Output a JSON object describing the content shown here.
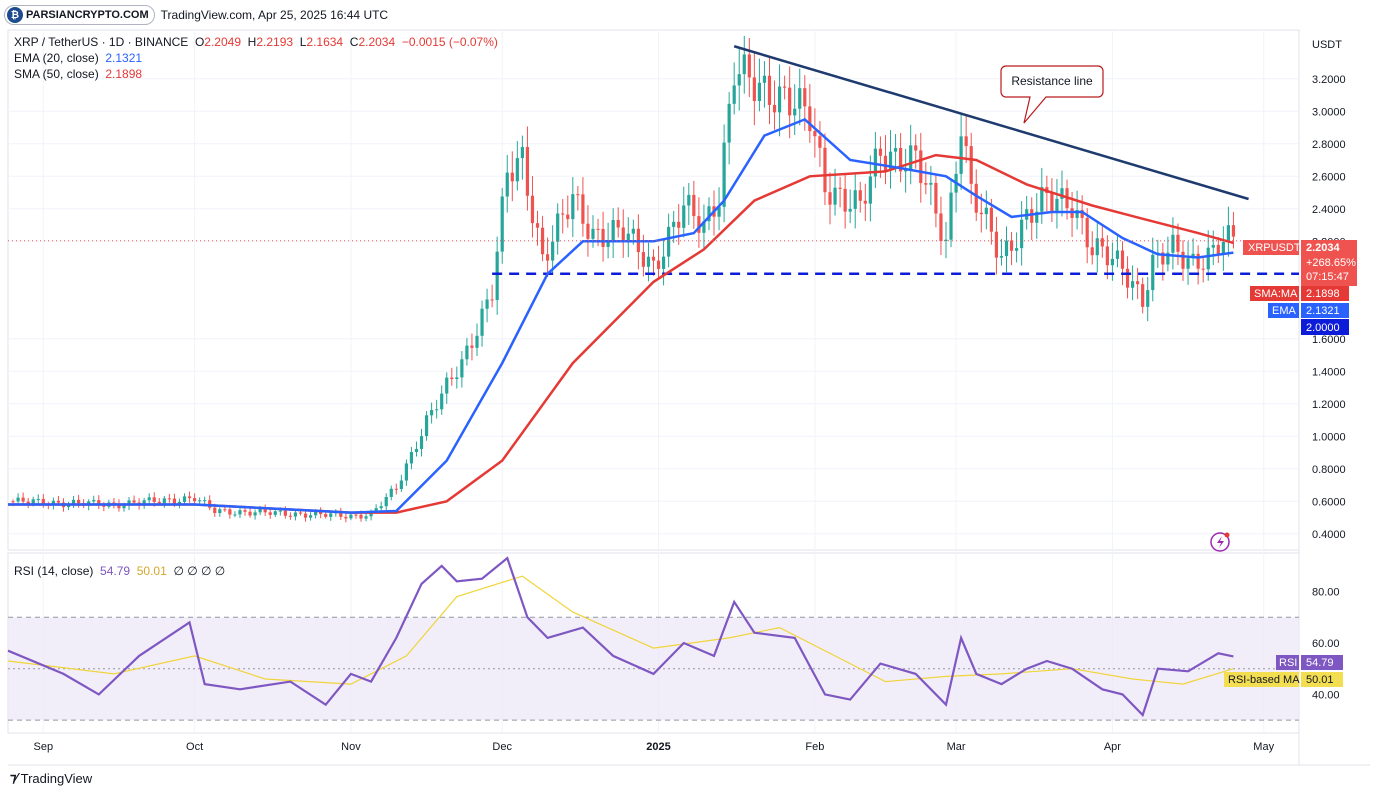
{
  "header": {
    "logo_text": "PARSIANCRYPTO.COM",
    "source_text": "TradingView.com, Apr 25, 2025 16:44 UTC"
  },
  "legend": {
    "symbol": "XRP / TetherUS · 1D · BINANCE",
    "o_label": "O",
    "o_value": "2.2049",
    "h_label": "H",
    "h_value": "2.2193",
    "l_label": "L",
    "l_value": "2.1634",
    "c_label": "C",
    "c_value": "2.2034",
    "change": "−0.0015 (−0.07%)",
    "ema_label": "EMA (20, close)",
    "ema_value": "2.1321",
    "sma_label": "SMA (50, close)",
    "sma_value": "2.1898"
  },
  "rsi_legend": {
    "label": "RSI (14, close)",
    "rsi_value": "54.79",
    "ma_value": "50.01",
    "extra": "∅ ∅ ∅ ∅"
  },
  "price_axis": {
    "unit": "USDT",
    "ticks": [
      "3.2000",
      "3.0000",
      "2.8000",
      "2.6000",
      "2.4000",
      "2.2000",
      "1.6000",
      "1.4000",
      "1.2000",
      "1.0000",
      "0.8000",
      "0.6000",
      "0.4000"
    ]
  },
  "price_labels": {
    "symbol_tag": "XRPUSDT",
    "last_price": "2.2034",
    "pct": "+268.65%",
    "countdown": "07:15:47",
    "sma_tag": "SMA:MA",
    "sma_value": "2.1898",
    "ema_tag": "EMA",
    "ema_value": "2.1321",
    "level_value": "2.0000"
  },
  "rsi_axis": {
    "ticks": [
      "80.00",
      "60.00",
      "40.00"
    ]
  },
  "rsi_labels": {
    "rsi_tag": "RSI",
    "rsi_value": "54.79",
    "ma_tag": "RSI-based MA",
    "ma_value": "50.01"
  },
  "time_axis": {
    "ticks": [
      "Sep",
      "Oct",
      "Nov",
      "Dec",
      "2025",
      "Feb",
      "Mar",
      "Apr",
      "May"
    ]
  },
  "annotation": {
    "resistance": "Resistance line"
  },
  "footer": {
    "brand": "TradingView"
  },
  "colors": {
    "up": "#26a69a",
    "down": "#ef5350",
    "ema": "#2962ff",
    "sma": "#e53935",
    "trendline": "#1e3a6e",
    "support": "#0d1cd8",
    "rsi": "#7e57c2",
    "rsi_ma": "#f0d43a",
    "rsi_band": "#ede7f6"
  },
  "chart_data": {
    "type": "candlestick",
    "title": "XRP / TetherUS · 1D · BINANCE",
    "y_axis": {
      "scale": "linear",
      "range": [
        0.3,
        3.5
      ],
      "unit": "USDT"
    },
    "x_axis": {
      "range": [
        "2024-08-25",
        "2025-05-08"
      ]
    },
    "anchors": [
      [
        "2024-08-25",
        0.6
      ],
      [
        "2024-09-15",
        0.58
      ],
      [
        "2024-10-01",
        0.62
      ],
      [
        "2024-10-05",
        0.54
      ],
      [
        "2024-11-01",
        0.51
      ],
      [
        "2024-11-05",
        0.52
      ],
      [
        "2024-11-10",
        0.68
      ],
      [
        "2024-11-16",
        1.1
      ],
      [
        "2024-11-23",
        1.45
      ],
      [
        "2024-11-29",
        1.9
      ],
      [
        "2024-12-02",
        2.6
      ],
      [
        "2024-12-05",
        2.7
      ],
      [
        "2024-12-09",
        2.1
      ],
      [
        "2024-12-15",
        2.45
      ],
      [
        "2024-12-19",
        2.25
      ],
      [
        "2024-12-25",
        2.25
      ],
      [
        "2024-12-31",
        2.05
      ],
      [
        "2025-01-06",
        2.4
      ],
      [
        "2025-01-10",
        2.3
      ],
      [
        "2025-01-13",
        2.5
      ],
      [
        "2025-01-16",
        3.25
      ],
      [
        "2025-01-20",
        3.15
      ],
      [
        "2025-01-26",
        3.1
      ],
      [
        "2025-01-31",
        2.95
      ],
      [
        "2025-02-03",
        2.55
      ],
      [
        "2025-02-10",
        2.4
      ],
      [
        "2025-02-14",
        2.75
      ],
      [
        "2025-02-21",
        2.7
      ],
      [
        "2025-02-27",
        2.2
      ],
      [
        "2025-03-02",
        2.95
      ],
      [
        "2025-03-04",
        2.5
      ],
      [
        "2025-03-10",
        2.1
      ],
      [
        "2025-03-15",
        2.35
      ],
      [
        "2025-03-19",
        2.45
      ],
      [
        "2025-03-24",
        2.45
      ],
      [
        "2025-03-28",
        2.15
      ],
      [
        "2025-04-03",
        2.05
      ],
      [
        "2025-04-07",
        1.85
      ],
      [
        "2025-04-09",
        2.05
      ],
      [
        "2025-04-13",
        2.15
      ],
      [
        "2025-04-17",
        2.08
      ],
      [
        "2025-04-21",
        2.12
      ],
      [
        "2025-04-23",
        2.2
      ],
      [
        "2025-04-25",
        2.2034
      ]
    ],
    "ema20": [
      [
        "2024-08-25",
        0.58
      ],
      [
        "2024-10-01",
        0.58
      ],
      [
        "2024-11-01",
        0.53
      ],
      [
        "2024-11-10",
        0.54
      ],
      [
        "2024-11-20",
        0.85
      ],
      [
        "2024-12-01",
        1.45
      ],
      [
        "2024-12-10",
        2.0
      ],
      [
        "2024-12-17",
        2.2
      ],
      [
        "2024-12-31",
        2.2
      ],
      [
        "2025-01-08",
        2.25
      ],
      [
        "2025-01-14",
        2.45
      ],
      [
        "2025-01-22",
        2.85
      ],
      [
        "2025-01-30",
        2.95
      ],
      [
        "2025-02-08",
        2.7
      ],
      [
        "2025-02-18",
        2.65
      ],
      [
        "2025-02-27",
        2.6
      ],
      [
        "2025-03-05",
        2.48
      ],
      [
        "2025-03-12",
        2.35
      ],
      [
        "2025-03-20",
        2.38
      ],
      [
        "2025-03-26",
        2.38
      ],
      [
        "2025-04-03",
        2.22
      ],
      [
        "2025-04-10",
        2.12
      ],
      [
        "2025-04-18",
        2.1
      ],
      [
        "2025-04-25",
        2.13
      ]
    ],
    "sma50": [
      [
        "2024-08-25",
        0.58
      ],
      [
        "2024-10-01",
        0.58
      ],
      [
        "2024-11-01",
        0.53
      ],
      [
        "2024-11-10",
        0.53
      ],
      [
        "2024-11-20",
        0.6
      ],
      [
        "2024-12-01",
        0.85
      ],
      [
        "2024-12-15",
        1.45
      ],
      [
        "2024-12-31",
        1.95
      ],
      [
        "2025-01-10",
        2.15
      ],
      [
        "2025-01-20",
        2.45
      ],
      [
        "2025-01-31",
        2.6
      ],
      [
        "2025-02-15",
        2.63
      ],
      [
        "2025-02-25",
        2.73
      ],
      [
        "2025-03-05",
        2.7
      ],
      [
        "2025-03-15",
        2.55
      ],
      [
        "2025-03-28",
        2.42
      ],
      [
        "2025-04-08",
        2.33
      ],
      [
        "2025-04-18",
        2.25
      ],
      [
        "2025-04-25",
        2.19
      ]
    ],
    "resistance_line": [
      [
        "2025-01-16",
        3.4
      ],
      [
        "2025-04-28",
        2.46
      ]
    ],
    "support_level": 2.0,
    "rsi": {
      "range": [
        25,
        95
      ],
      "overbought": 70,
      "oversold": 30,
      "values": [
        [
          "2024-08-25",
          57
        ],
        [
          "2024-09-05",
          48
        ],
        [
          "2024-09-12",
          40
        ],
        [
          "2024-09-20",
          55
        ],
        [
          "2024-09-30",
          68
        ],
        [
          "2024-10-03",
          44
        ],
        [
          "2024-10-10",
          42
        ],
        [
          "2024-10-20",
          45
        ],
        [
          "2024-10-27",
          36
        ],
        [
          "2024-11-01",
          48
        ],
        [
          "2024-11-05",
          45
        ],
        [
          "2024-11-10",
          62
        ],
        [
          "2024-11-15",
          83
        ],
        [
          "2024-11-19",
          90
        ],
        [
          "2024-11-22",
          84
        ],
        [
          "2024-11-27",
          85
        ],
        [
          "2024-12-02",
          93
        ],
        [
          "2024-12-06",
          70
        ],
        [
          "2024-12-10",
          62
        ],
        [
          "2024-12-17",
          66
        ],
        [
          "2024-12-23",
          55
        ],
        [
          "2024-12-31",
          48
        ],
        [
          "2025-01-06",
          60
        ],
        [
          "2025-01-12",
          55
        ],
        [
          "2025-01-16",
          76
        ],
        [
          "2025-01-20",
          64
        ],
        [
          "2025-01-28",
          62
        ],
        [
          "2025-02-03",
          40
        ],
        [
          "2025-02-08",
          38
        ],
        [
          "2025-02-14",
          52
        ],
        [
          "2025-02-21",
          48
        ],
        [
          "2025-02-27",
          36
        ],
        [
          "2025-03-02",
          62
        ],
        [
          "2025-03-05",
          48
        ],
        [
          "2025-03-10",
          44
        ],
        [
          "2025-03-15",
          50
        ],
        [
          "2025-03-19",
          53
        ],
        [
          "2025-03-24",
          50
        ],
        [
          "2025-03-30",
          42
        ],
        [
          "2025-04-03",
          40
        ],
        [
          "2025-04-07",
          32
        ],
        [
          "2025-04-10",
          50
        ],
        [
          "2025-04-16",
          49
        ],
        [
          "2025-04-22",
          56
        ],
        [
          "2025-04-25",
          54.79
        ]
      ],
      "ma": [
        [
          "2024-08-25",
          53
        ],
        [
          "2024-09-15",
          48
        ],
        [
          "2024-10-01",
          55
        ],
        [
          "2024-10-15",
          46
        ],
        [
          "2024-11-01",
          44
        ],
        [
          "2024-11-12",
          55
        ],
        [
          "2024-11-22",
          78
        ],
        [
          "2024-12-05",
          86
        ],
        [
          "2024-12-15",
          72
        ],
        [
          "2024-12-31",
          58
        ],
        [
          "2025-01-15",
          62
        ],
        [
          "2025-01-25",
          66
        ],
        [
          "2025-02-05",
          55
        ],
        [
          "2025-02-15",
          45
        ],
        [
          "2025-02-27",
          47
        ],
        [
          "2025-03-10",
          48
        ],
        [
          "2025-03-24",
          50
        ],
        [
          "2025-04-05",
          46
        ],
        [
          "2025-04-15",
          44
        ],
        [
          "2025-04-25",
          50.01
        ]
      ]
    }
  }
}
